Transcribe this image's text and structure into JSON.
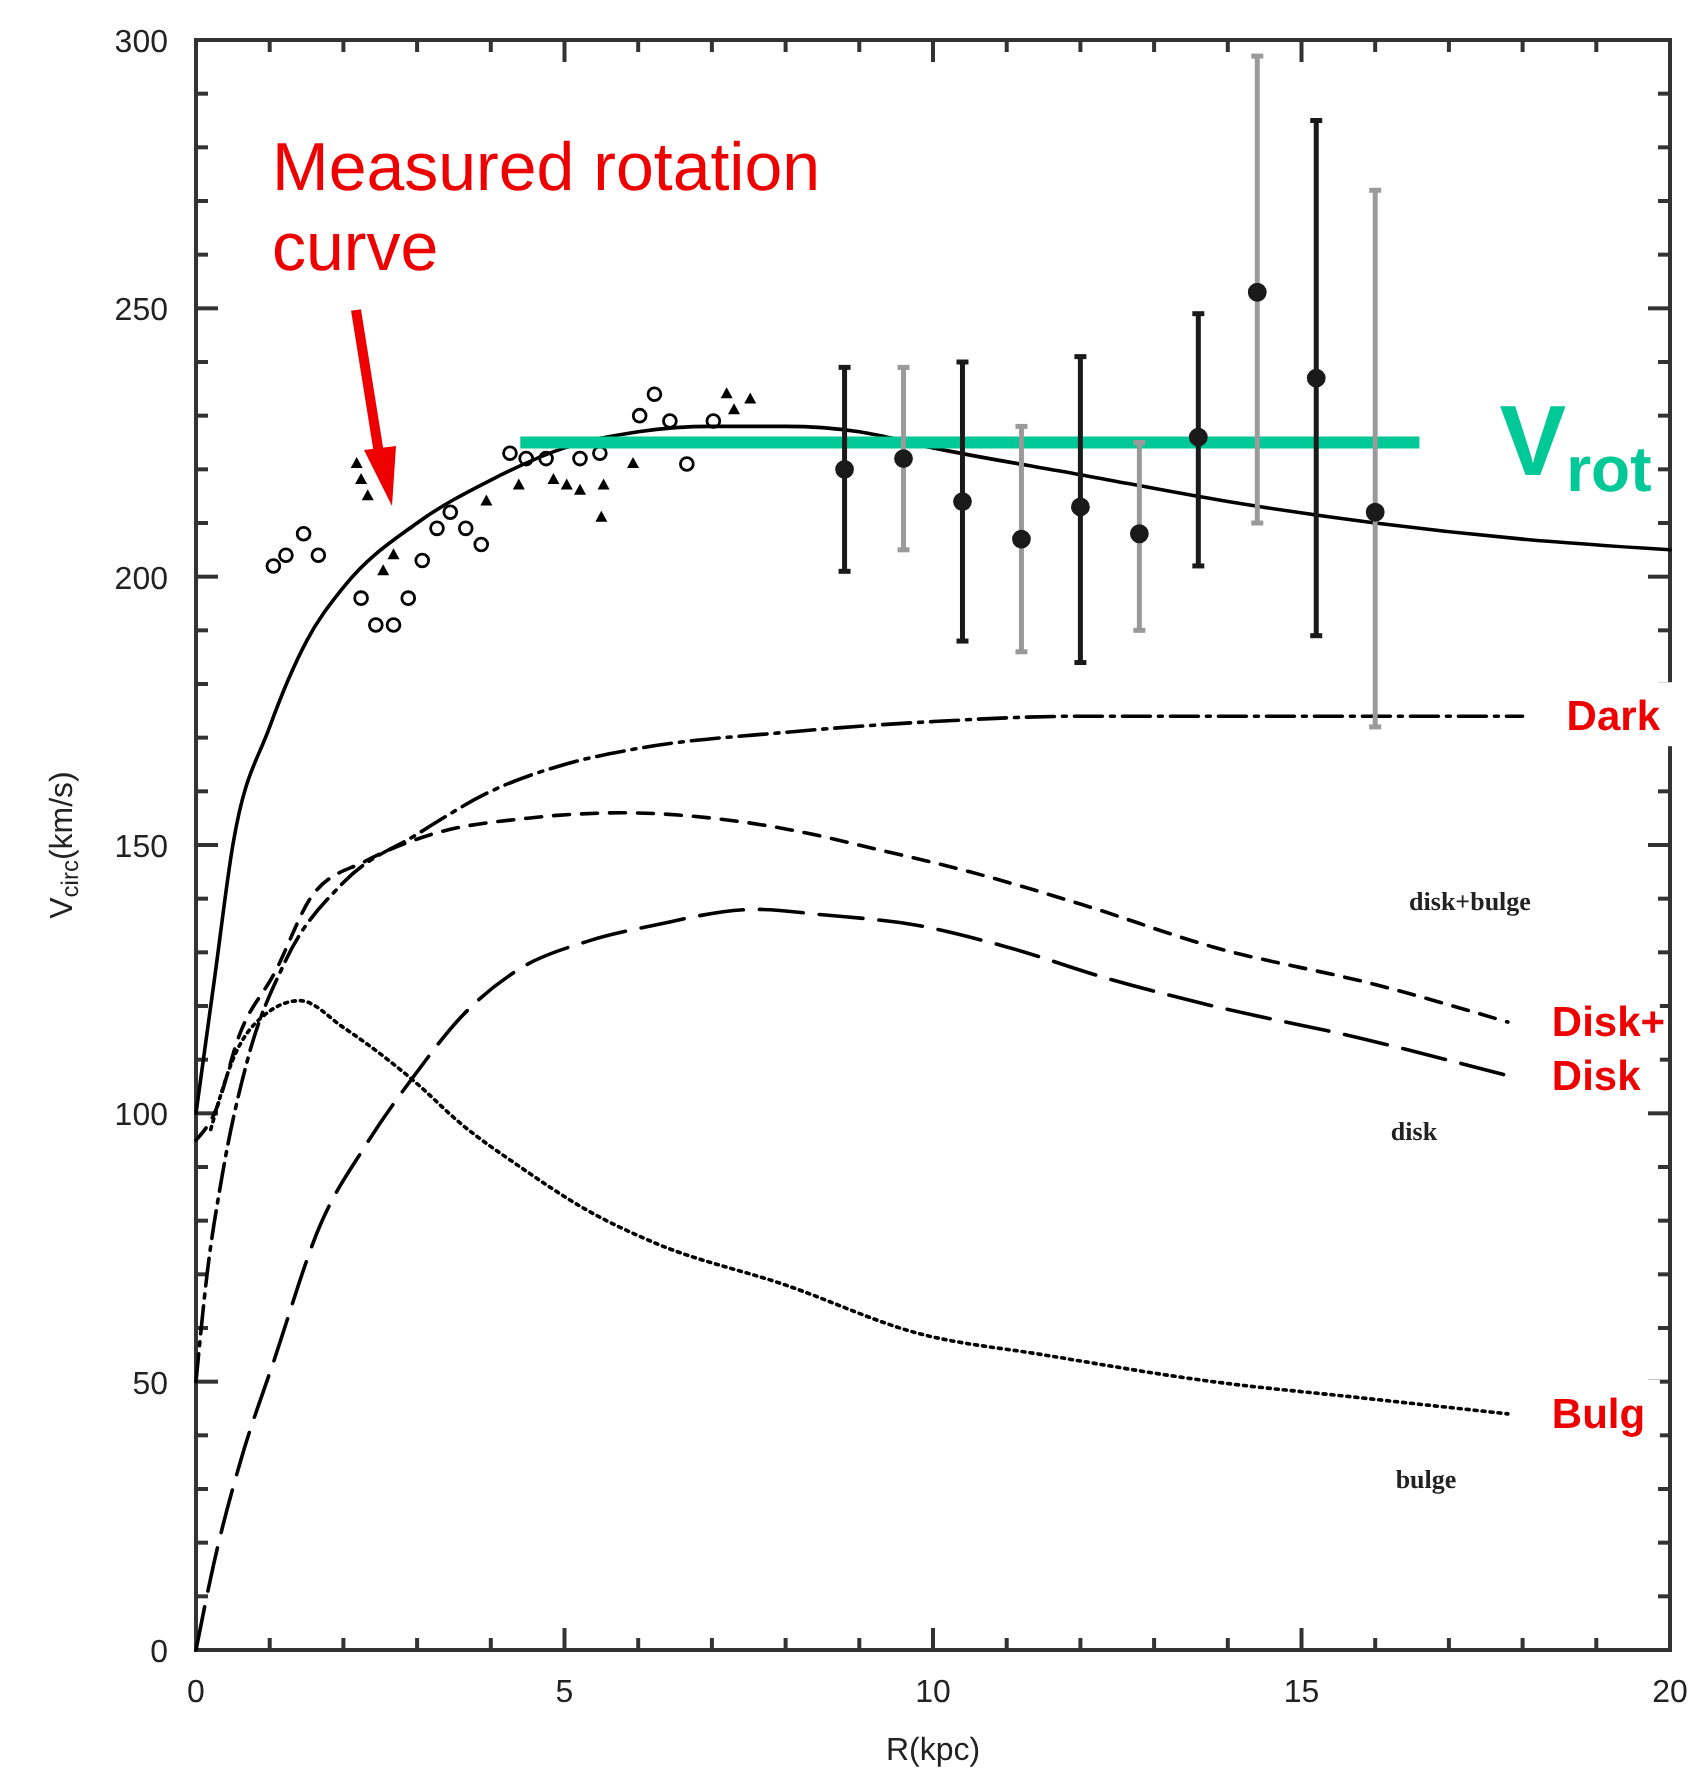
{
  "chart_data": {
    "type": "line",
    "xlabel": "R(kpc)",
    "ylabel": "V$_{circ}$(km/s)",
    "xlim": [
      0,
      20
    ],
    "ylim": [
      0,
      300
    ],
    "xticks": [
      0,
      {
        "value": 1,
        "label": null
      },
      {
        "value": 2,
        "label": null
      },
      {
        "value": 3,
        "label": null
      },
      {
        "value": 4,
        "label": null
      },
      5,
      {
        "value": 6,
        "label": null
      },
      {
        "value": 7,
        "label": null
      },
      {
        "value": 8,
        "label": null
      },
      {
        "value": 9,
        "label": null
      },
      10,
      {
        "value": 11,
        "label": null
      },
      {
        "value": 12,
        "label": null
      },
      {
        "value": 13,
        "label": null
      },
      {
        "value": 14,
        "label": null
      },
      15,
      {
        "value": 16,
        "label": null
      },
      {
        "value": 17,
        "label": null
      },
      {
        "value": 18,
        "label": null
      },
      {
        "value": 19,
        "label": null
      },
      20
    ],
    "yticks": [
      0,
      {
        "value": 10,
        "label": null
      },
      {
        "value": 20,
        "label": null
      },
      {
        "value": 30,
        "label": null
      },
      {
        "value": 40,
        "label": null
      },
      50,
      {
        "value": 60,
        "label": null
      },
      {
        "value": 70,
        "label": null
      },
      {
        "value": 80,
        "label": null
      },
      {
        "value": 90,
        "label": null
      },
      100,
      {
        "value": 110,
        "label": null
      },
      {
        "value": 120,
        "label": null
      },
      {
        "value": 130,
        "label": null
      },
      {
        "value": 140,
        "label": null
      },
      150,
      {
        "value": 160,
        "label": null
      },
      {
        "value": 170,
        "label": null
      },
      {
        "value": 180,
        "label": null
      },
      {
        "value": 190,
        "label": null
      },
      200,
      {
        "value": 210,
        "label": null
      },
      {
        "value": 220,
        "label": null
      },
      {
        "value": 230,
        "label": null
      },
      {
        "value": 240,
        "label": null
      },
      250,
      {
        "value": 260,
        "label": null
      },
      {
        "value": 270,
        "label": null
      },
      {
        "value": 280,
        "label": null
      },
      {
        "value": 290,
        "label": null
      },
      300
    ],
    "grid": false,
    "series": [
      {
        "color": "#000000",
        "line_style": "solid",
        "x": [
          0,
          0.25,
          0.5,
          1,
          1.5,
          2,
          3,
          4,
          5,
          6,
          7,
          8,
          9,
          10,
          12,
          14,
          16,
          18,
          20
        ],
        "values": [
          100,
          125,
          150,
          172,
          188,
          198,
          210,
          218,
          224,
          227,
          228,
          228,
          227,
          224,
          219,
          214,
          210,
          207,
          205
        ]
      },
      {
        "name": "Dark",
        "color": "#000000",
        "line_style": "dashed",
        "x": [
          0,
          0.15,
          0.35,
          0.7,
          1.2,
          2,
          3,
          4,
          5,
          6,
          8,
          10,
          12,
          14,
          16,
          18
        ],
        "values": [
          50,
          70,
          88,
          110,
          128,
          143,
          152,
          160,
          165,
          168,
          171,
          173,
          174,
          174,
          174,
          174
        ]
      },
      {
        "name": "Disk+",
        "color": "#000000",
        "line_style": "dashed",
        "x": [
          0,
          0.25,
          0.6,
          1.06,
          1.6,
          2.3,
          3.2,
          4.5,
          5.8,
          7,
          8,
          9.3,
          10.5,
          12,
          13.8,
          16,
          17.8
        ],
        "values": [
          95,
          100,
          115,
          126,
          141,
          147,
          152,
          155,
          156,
          155,
          153,
          149,
          145,
          139,
          131,
          124,
          117
        ]
      },
      {
        "name": "Disk",
        "color": "#000000",
        "line_style": "dashed",
        "x": [
          0,
          0.24,
          0.6,
          1.06,
          1.68,
          2.3,
          2.96,
          3.6,
          4.4,
          5.3,
          6.2,
          7.6,
          8.5,
          9.8,
          11,
          12.4,
          13.8,
          15.8,
          17.8
        ],
        "values": [
          0,
          16,
          35,
          54,
          79,
          94,
          107,
          118,
          127,
          132,
          135,
          138,
          137,
          135,
          131,
          125,
          120,
          114,
          107
        ]
      },
      {
        "name": "Bulg",
        "color": "#000000",
        "line_style": "dotted",
        "x": [
          0.2,
          0.5,
          0.9,
          1.41,
          2,
          2.96,
          3.6,
          4.4,
          5.3,
          6.2,
          8,
          9.8,
          11.5,
          13.8,
          15.8,
          17.8
        ],
        "values": [
          97,
          110,
          118,
          121,
          116,
          106,
          98,
          90,
          82,
          76,
          68,
          59,
          55,
          50,
          47,
          44
        ]
      },
      {
        "type": "scatter",
        "color": "#000000",
        "marker": "circle",
        "x": [
          1.05,
          1.22,
          1.46,
          1.66,
          2.24,
          2.44,
          2.68,
          2.88,
          3.07,
          3.27,
          3.45,
          3.66,
          3.87,
          4.26,
          4.48,
          4.75,
          5.21,
          5.48,
          6.02,
          6.22,
          6.43,
          6.66,
          7.02
        ],
        "values": [
          202,
          204,
          208,
          204,
          196,
          191,
          191,
          196,
          203,
          209,
          212,
          209,
          206,
          223,
          222,
          222,
          222,
          223,
          230,
          234,
          229,
          221,
          229
        ]
      },
      {
        "type": "scatter",
        "color": "#000000",
        "marker": "triangle",
        "x": [
          2.18,
          2.24,
          2.33,
          2.54,
          2.68,
          3.94,
          4.38,
          4.85,
          5.03,
          5.21,
          5.5,
          5.53,
          5.93,
          7.2,
          7.3,
          7.52
        ],
        "values": [
          221,
          218,
          215,
          201,
          204,
          214,
          217,
          218,
          217,
          216,
          211,
          217,
          221,
          234,
          231,
          233
        ]
      },
      {
        "name": "V$_{rot}$",
        "color": "#00c896",
        "line_style": "solid",
        "x": [
          4.4,
          16.6
        ],
        "values": [
          225,
          225
        ]
      },
      {
        "type": "scatter",
        "color": "#1a1a1a",
        "marker": "circle",
        "x": [
          8.8,
          9.6,
          10.4,
          11.2,
          12,
          12.8,
          13.6,
          14.4,
          15.2,
          16
        ],
        "values": [
          220,
          222,
          214,
          207,
          213,
          208,
          226,
          253,
          237,
          212
        ],
        "errors": [
          [
            201,
            239
          ],
          [
            205,
            239
          ],
          [
            188,
            240
          ],
          [
            186,
            228
          ],
          [
            184,
            241
          ],
          [
            190,
            225
          ],
          [
            202,
            249
          ],
          [
            210,
            297
          ],
          [
            189,
            285
          ],
          [
            172,
            272
          ]
        ]
      }
    ],
    "annotations": [
      "Measured rotation curve",
      "disk+bulge",
      "disk",
      "bulge"
    ]
  }
}
